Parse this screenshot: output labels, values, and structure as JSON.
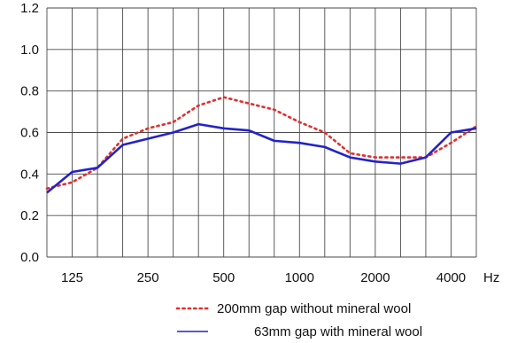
{
  "chart_data": {
    "type": "line",
    "title": "",
    "xlabel": "",
    "ylabel": "",
    "x_unit_label": "Hz",
    "x": [
      "100",
      "125",
      "160",
      "200",
      "250",
      "315",
      "400",
      "500",
      "630",
      "800",
      "1000",
      "1250",
      "1600",
      "2000",
      "2500",
      "3150",
      "4000",
      "5000"
    ],
    "x_tick_labels": [
      {
        "index": 1,
        "label": "125"
      },
      {
        "index": 4,
        "label": "250"
      },
      {
        "index": 7,
        "label": "500"
      },
      {
        "index": 10,
        "label": "1000"
      },
      {
        "index": 13,
        "label": "2000"
      },
      {
        "index": 16,
        "label": "4000"
      }
    ],
    "ylim": [
      0.0,
      1.2
    ],
    "y_ticks": [
      "0.0",
      "0.2",
      "0.4",
      "0.6",
      "0.8",
      "1.0",
      "1.2"
    ],
    "grid": true,
    "legend_position": "bottom-right",
    "series": [
      {
        "name": "200mm gap without mineral wool",
        "style": "dotted",
        "color": "#e03030",
        "values": [
          0.33,
          0.36,
          0.43,
          0.57,
          0.62,
          0.65,
          0.73,
          0.77,
          0.74,
          0.71,
          0.65,
          0.6,
          0.5,
          0.48,
          0.48,
          0.48,
          0.55,
          0.63
        ]
      },
      {
        "name": "63mm gap with mineral wool",
        "style": "solid",
        "color": "#2323c8",
        "values": [
          0.31,
          0.41,
          0.43,
          0.54,
          0.57,
          0.6,
          0.64,
          0.62,
          0.61,
          0.56,
          0.55,
          0.53,
          0.48,
          0.46,
          0.45,
          0.48,
          0.6,
          0.62
        ]
      }
    ]
  }
}
